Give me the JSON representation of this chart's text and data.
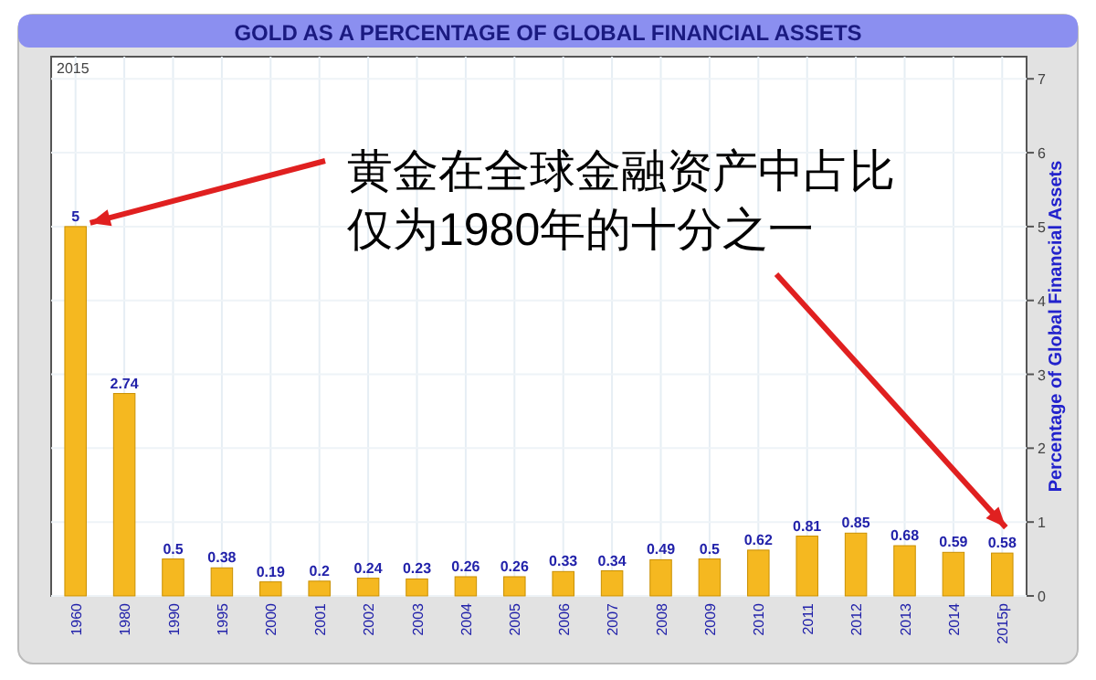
{
  "chart_data": {
    "type": "bar",
    "title": "GOLD AS A PERCENTAGE OF GLOBAL FINANCIAL ASSETS",
    "ylabel": "Percentage of Global Financial Assets",
    "categories": [
      "1960",
      "1980",
      "1990",
      "1995",
      "2000",
      "2001",
      "2002",
      "2003",
      "2004",
      "2005",
      "2006",
      "2007",
      "2008",
      "2009",
      "2010",
      "2011",
      "2012",
      "2013",
      "2014",
      "2015p"
    ],
    "values": [
      5,
      2.74,
      0.5,
      0.38,
      0.19,
      0.2,
      0.24,
      0.23,
      0.26,
      0.26,
      0.33,
      0.34,
      0.49,
      0.5,
      0.62,
      0.81,
      0.85,
      0.68,
      0.59,
      0.58
    ],
    "color": "#f5b820",
    "data_labels": true,
    "ylim": [
      0,
      7.3
    ],
    "yticks": [
      0,
      1,
      2,
      3,
      4,
      5,
      6,
      7
    ],
    "grid": true,
    "annotations": [
      "2015",
      {
        "text": "黄金在全球金融资产中占比",
        "x": "1960",
        "y": 5
      },
      "仅为1980年的十分之一"
    ]
  }
}
